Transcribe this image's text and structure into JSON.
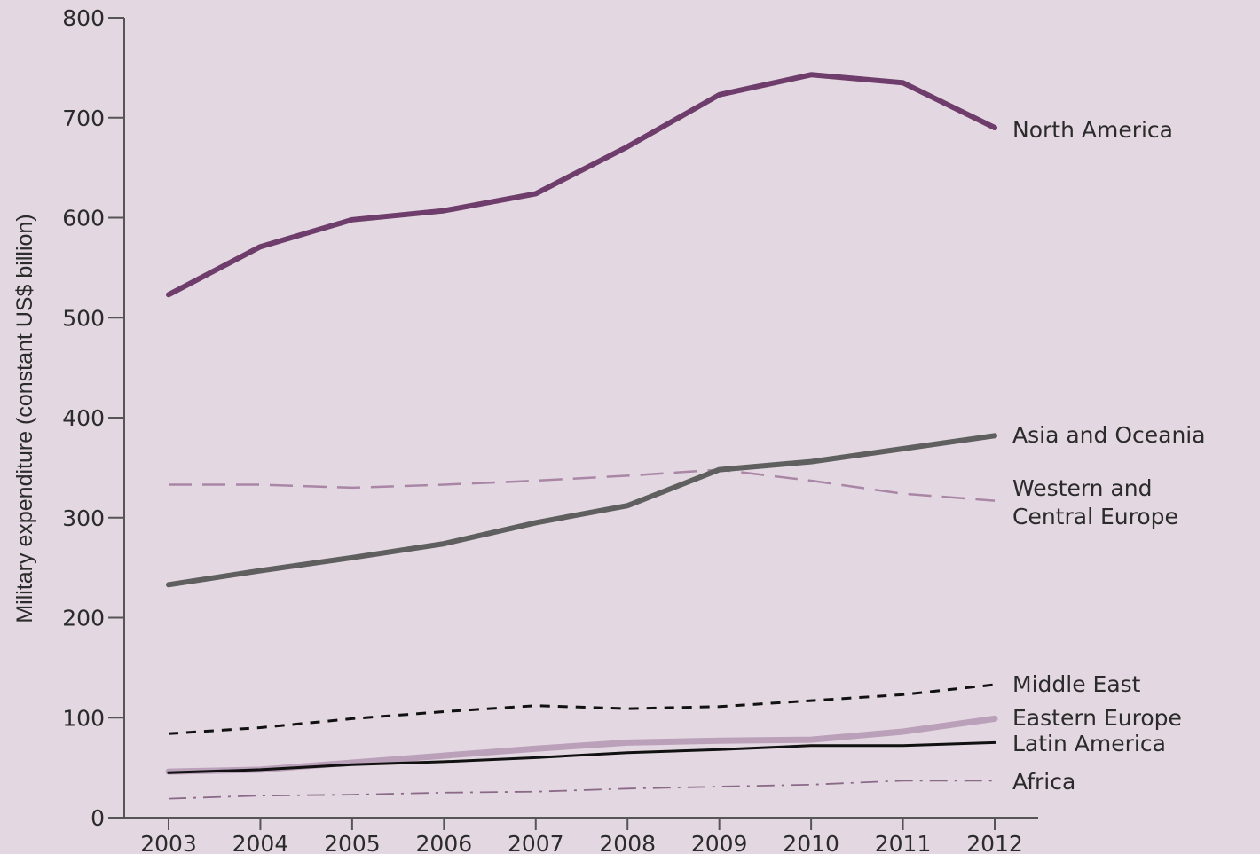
{
  "chart_data": {
    "type": "line",
    "title": "",
    "xlabel": "",
    "ylabel": "Military expenditure (constant US$ billion)",
    "ylim": [
      0,
      800
    ],
    "yticks": [
      0,
      100,
      200,
      300,
      400,
      500,
      600,
      700,
      800
    ],
    "x": [
      "2003",
      "2004",
      "2005",
      "2006",
      "2007",
      "2008",
      "2009",
      "2010",
      "2011",
      "2012"
    ],
    "grid": false,
    "legend": "end-of-line labels",
    "series": [
      {
        "key": "na",
        "name": "North America",
        "label_lines": [
          "North America"
        ],
        "color": "#6e3d6b",
        "style": "solid-thick",
        "values": [
          523,
          571,
          598,
          607,
          624,
          671,
          723,
          743,
          735,
          690
        ]
      },
      {
        "key": "asia",
        "name": "Asia and Oceania",
        "label_lines": [
          "Asia and Oceania"
        ],
        "color": "#5f5f5f",
        "style": "solid-thick",
        "values": [
          233,
          247,
          260,
          274,
          295,
          312,
          348,
          356,
          369,
          382
        ]
      },
      {
        "key": "wce",
        "name": "Western and Central Europe",
        "label_lines": [
          "Western and",
          "Central Europe"
        ],
        "color": "#a986a6",
        "style": "long-dash",
        "values": [
          333,
          333,
          330,
          333,
          337,
          342,
          348,
          337,
          324,
          317
        ]
      },
      {
        "key": "me",
        "name": "Middle East",
        "label_lines": [
          "Middle East"
        ],
        "color": "#111111",
        "style": "short-dash",
        "values": [
          84,
          90,
          99,
          106,
          112,
          109,
          111,
          117,
          123,
          133
        ]
      },
      {
        "key": "ee",
        "name": "Eastern Europe",
        "label_lines": [
          "Eastern Europe"
        ],
        "color": "#bba0ba",
        "style": "solid-light",
        "values": [
          46,
          48,
          55,
          62,
          69,
          75,
          77,
          78,
          86,
          99
        ]
      },
      {
        "key": "la",
        "name": "Latin America",
        "label_lines": [
          "Latin America"
        ],
        "color": "#111111",
        "style": "solid-thin",
        "values": [
          45,
          48,
          53,
          56,
          60,
          65,
          68,
          72,
          72,
          75
        ]
      },
      {
        "key": "af",
        "name": "Africa",
        "label_lines": [
          "Africa"
        ],
        "color": "#8a6a88",
        "style": "dash-dot",
        "values": [
          19,
          22,
          23,
          25,
          26,
          29,
          31,
          33,
          37,
          37
        ]
      }
    ]
  }
}
